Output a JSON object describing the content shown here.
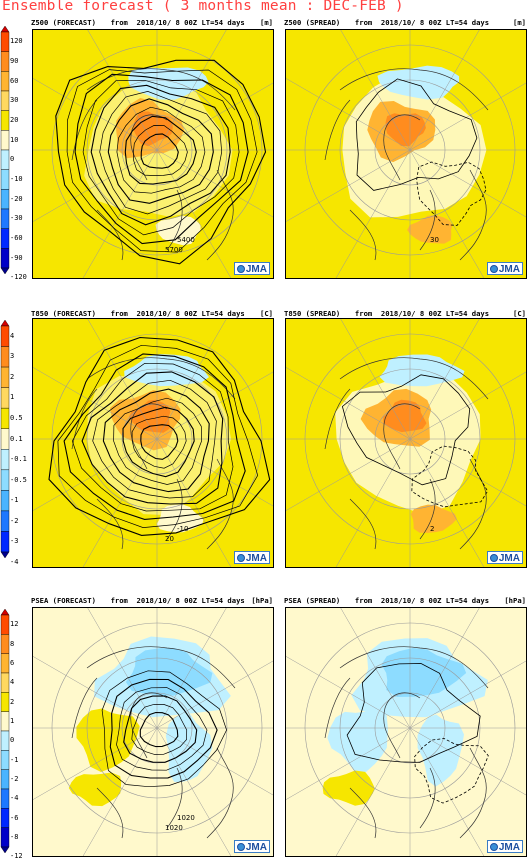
{
  "title": "Ensemble forecast ( 3 months mean : DEC-FEB )",
  "badge": "JMA",
  "rows": [
    {
      "colorbar": {
        "ticks": [
          "120",
          "90",
          "60",
          "30",
          "20",
          "10",
          "0",
          "-10",
          "-20",
          "-30",
          "-60",
          "-90",
          "-120"
        ],
        "colors": [
          "#d40000",
          "#ff4b00",
          "#ff8c1e",
          "#ffb432",
          "#ffd860",
          "#f6e600",
          "#fff9cc",
          "#bff0ff",
          "#8ddcff",
          "#4ab4ff",
          "#1e78ff",
          "#0028ff",
          "#0000c8",
          "#00008c"
        ]
      },
      "panels": [
        {
          "name": "Z500 (FORECAST)",
          "from": "from",
          "date": "2018/10/ 8 00Z LT=54 days",
          "unit": "[m]",
          "labels": [
            "5400",
            "5700"
          ]
        },
        {
          "name": "Z500 (SPREAD)",
          "from": "from",
          "date": "2018/10/ 8 00Z LT=54 days",
          "unit": "[m]",
          "labels": [
            "30"
          ]
        }
      ]
    },
    {
      "colorbar": {
        "ticks": [
          "4",
          "3",
          "2",
          "1",
          "0.5",
          "0.1",
          "-0.1",
          "-0.5",
          "-1",
          "-2",
          "-3",
          "-4"
        ],
        "colors": [
          "#d40000",
          "#ff4b00",
          "#ff8c1e",
          "#ffb432",
          "#ffd860",
          "#f6e600",
          "#fff9cc",
          "#bff0ff",
          "#8ddcff",
          "#4ab4ff",
          "#1e78ff",
          "#0028ff",
          "#00008c"
        ]
      },
      "panels": [
        {
          "name": "T850 (FORECAST)",
          "from": "from",
          "date": "2018/10/ 8 00Z LT=54 days",
          "unit": "[C]",
          "labels": [
            "-10",
            "20"
          ]
        },
        {
          "name": "T850 (SPREAD)",
          "from": "from",
          "date": "2018/10/ 8 00Z LT=54 days",
          "unit": "[C]",
          "labels": [
            "2"
          ]
        }
      ]
    },
    {
      "colorbar": {
        "ticks": [
          "12",
          "8",
          "6",
          "4",
          "2",
          "1",
          "0",
          "-1",
          "-2",
          "-4",
          "-6",
          "-8",
          "-12"
        ],
        "colors": [
          "#d40000",
          "#ff4b00",
          "#ff8c1e",
          "#ffb432",
          "#ffd860",
          "#f6e600",
          "#fff9cc",
          "#bff0ff",
          "#8ddcff",
          "#4ab4ff",
          "#1e78ff",
          "#0028ff",
          "#0000c8",
          "#00008c"
        ]
      },
      "panels": [
        {
          "name": "PSEA (FORECAST)",
          "from": "from",
          "date": "2018/10/ 8 00Z LT=54 days",
          "unit": "[hPa]",
          "labels": [
            "1020",
            "1020"
          ]
        },
        {
          "name": "PSEA (SPREAD)",
          "from": "from",
          "date": "2018/10/ 8 00Z LT=54 days",
          "unit": "[hPa]",
          "labels": []
        }
      ]
    }
  ],
  "palette": {
    "yellow": "#f6e600",
    "cream": "#fff9cc",
    "orange": "#ffb432",
    "darkorange": "#ff8c1e",
    "red": "#ff4b00",
    "lightblue": "#bff0ff",
    "blue": "#8ddcff",
    "deepblue": "#4ab4ff"
  }
}
